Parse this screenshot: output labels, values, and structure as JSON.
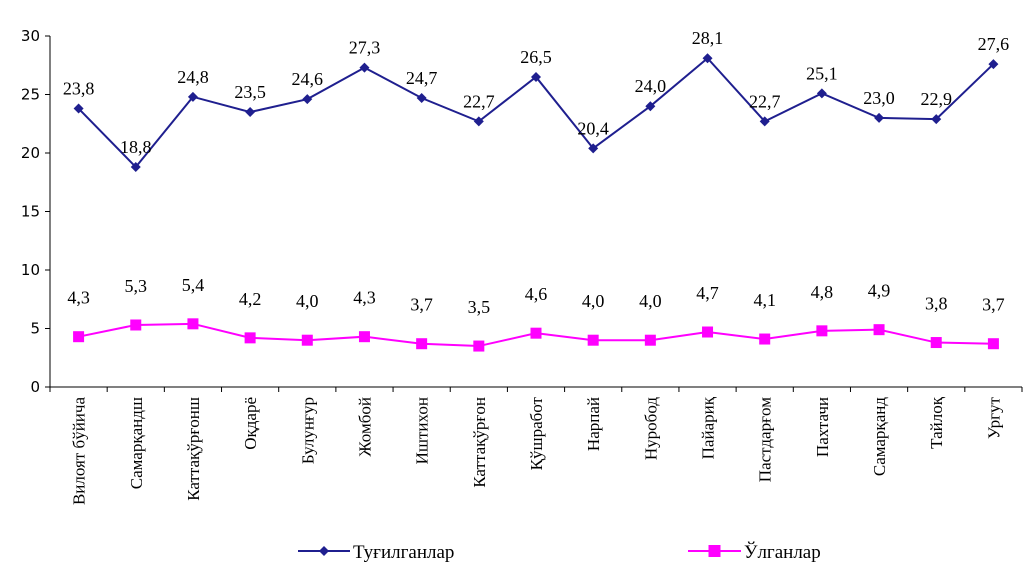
{
  "chart_data": {
    "type": "line",
    "title": "",
    "xlabel": "",
    "ylabel": "",
    "ylim": [
      0,
      30
    ],
    "yticks": [
      0,
      5,
      10,
      15,
      20,
      25,
      30
    ],
    "grid": false,
    "legend_position": "bottom",
    "categories": [
      "Вилоят бўйича",
      "Самарқандш",
      "Каттақўрғонш",
      "Оқдарё",
      "Булунғур",
      "Жомбой",
      "Иштихон",
      "Каттақўрғон",
      "Қўшработ",
      "Нарпай",
      "Нуробод",
      "Пайариқ",
      "Пастдарғом",
      "Пахтачи",
      "Самарқанд",
      "Тайлоқ",
      "Ургут"
    ],
    "series": [
      {
        "name": "Туғилганлар",
        "color": "#1f1f8f",
        "marker": "diamond",
        "values": [
          23.8,
          18.8,
          24.8,
          23.5,
          24.6,
          27.3,
          24.7,
          22.7,
          26.5,
          20.4,
          24.0,
          28.1,
          22.7,
          25.1,
          23.0,
          22.9,
          27.6
        ],
        "labels": [
          "23,8",
          "18,8",
          "24,8",
          "23,5",
          "24,6",
          "27,3",
          "24,7",
          "22,7",
          "26,5",
          "20,4",
          "24,0",
          "28,1",
          "22,7",
          "25,1",
          "23,0",
          "22,9",
          "27,6"
        ]
      },
      {
        "name": "Ўлганлар",
        "color": "#ff00ff",
        "marker": "square",
        "values": [
          4.3,
          5.3,
          5.4,
          4.2,
          4.0,
          4.3,
          3.7,
          3.5,
          4.6,
          4.0,
          4.0,
          4.7,
          4.1,
          4.8,
          4.9,
          3.8,
          3.7
        ],
        "labels": [
          "4,3",
          "5,3",
          "5,4",
          "4,2",
          "4,0",
          "4,3",
          "3,7",
          "3,5",
          "4,6",
          "4,0",
          "4,0",
          "4,7",
          "4,1",
          "4,8",
          "4,9",
          "3,8",
          "3,7"
        ]
      }
    ]
  }
}
